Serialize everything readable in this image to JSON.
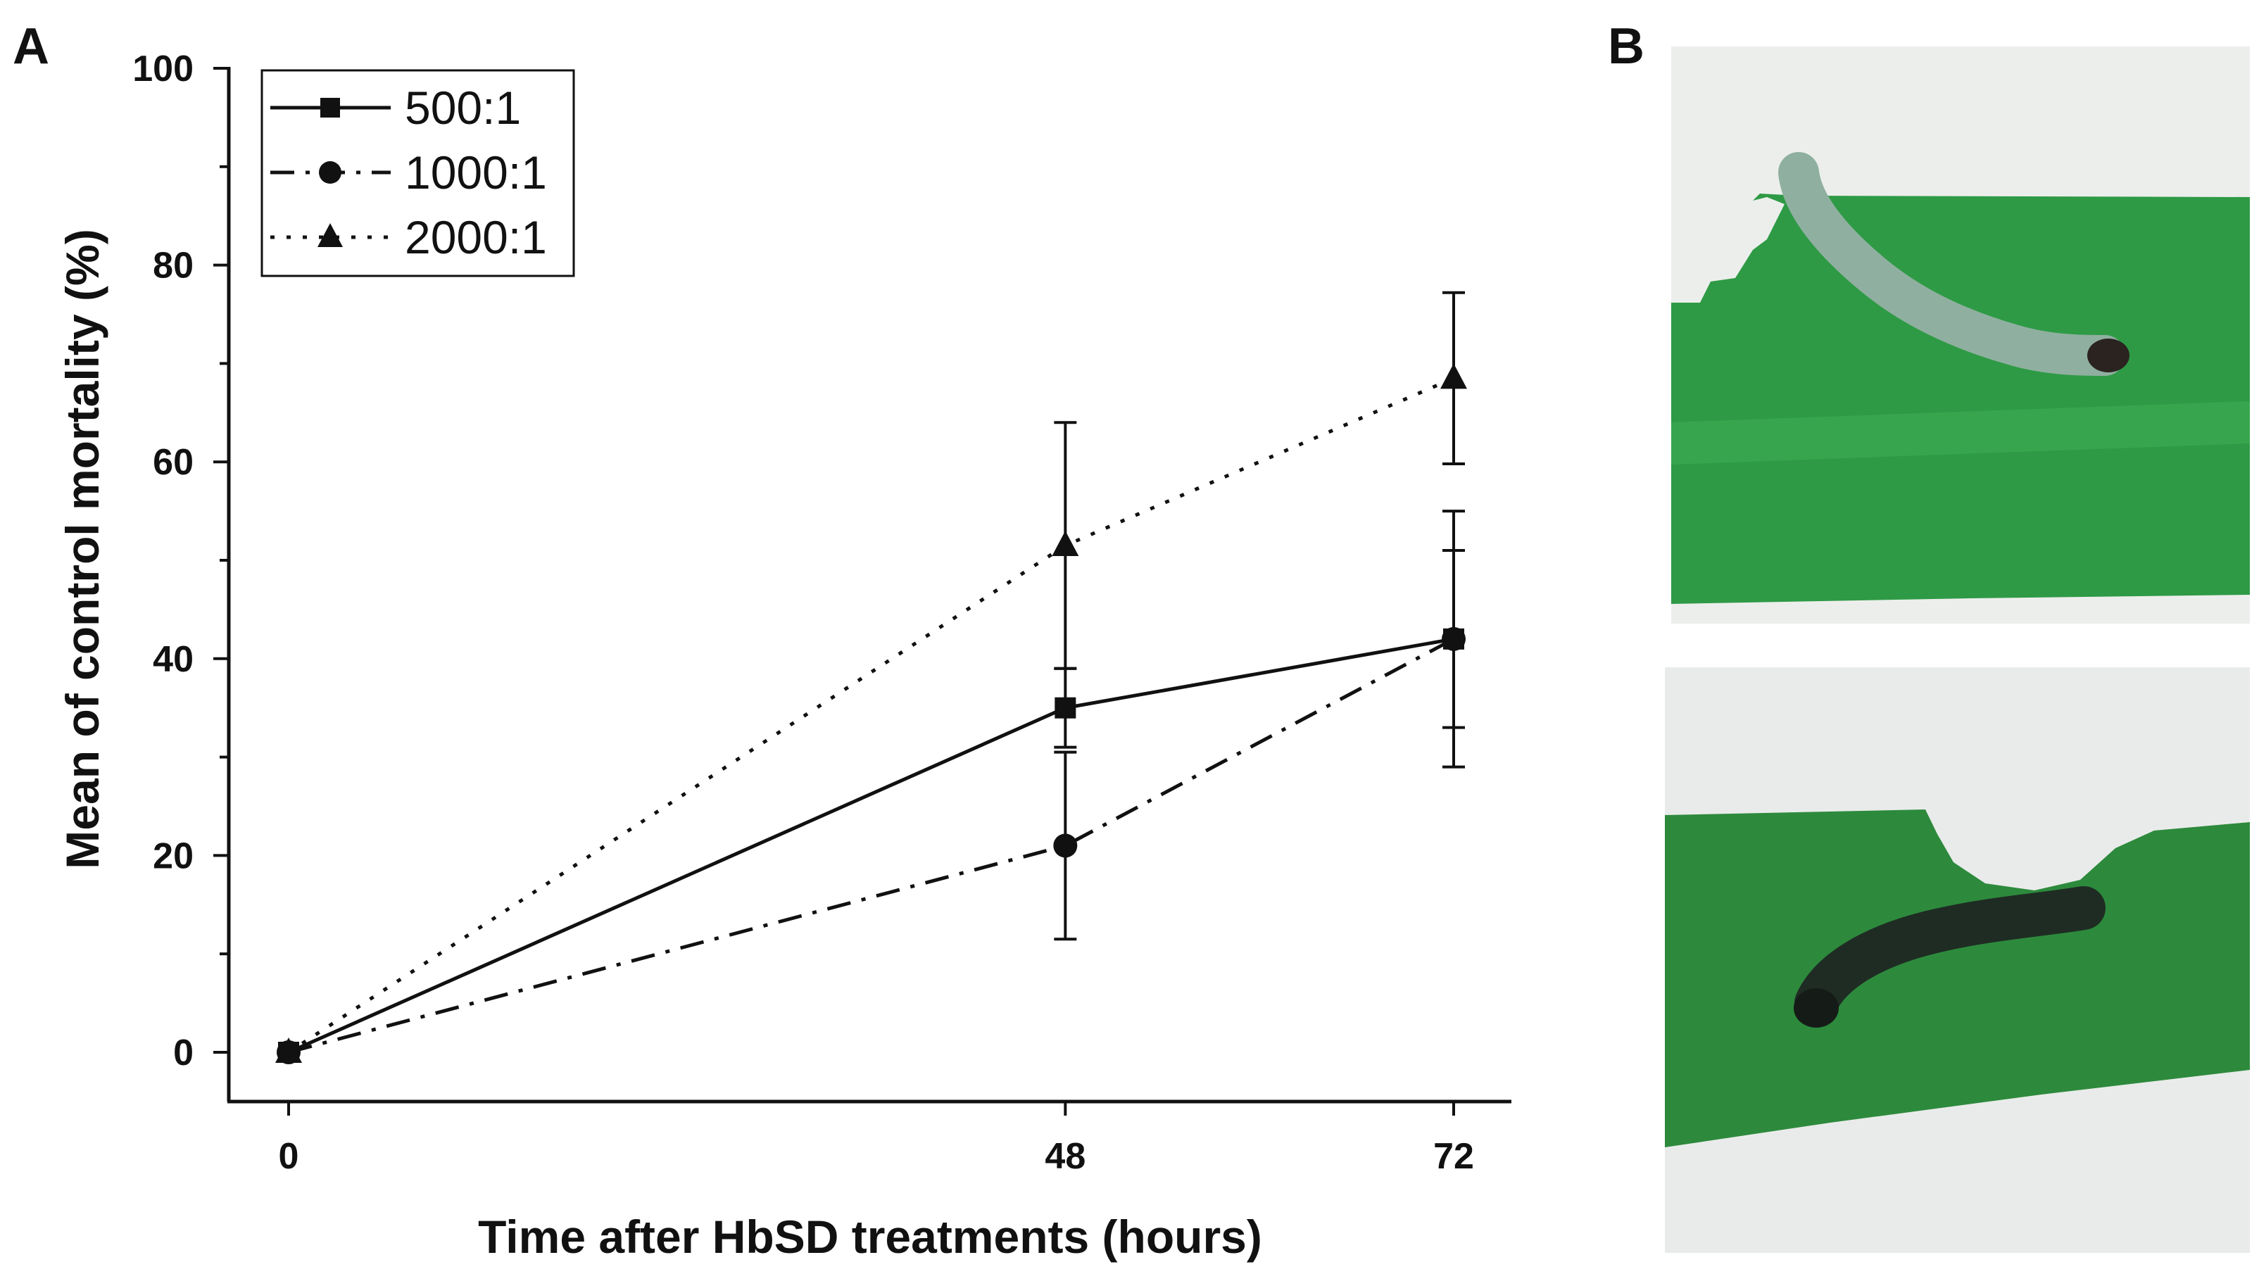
{
  "panels": {
    "a_label": "A",
    "b_label": "B"
  },
  "chart_data": {
    "type": "line",
    "title": "",
    "xlabel": "Time after HbSD treatments (hours)",
    "ylabel": "Mean of control mortality (%)",
    "x": [
      0,
      48,
      72
    ],
    "x_tick_labels": [
      "0",
      "48",
      "72"
    ],
    "y_tick_labels": [
      "0",
      "20",
      "40",
      "60",
      "80",
      "100"
    ],
    "ylim": [
      -10,
      100
    ],
    "yticks": [
      0,
      20,
      40,
      60,
      80,
      100
    ],
    "grid": false,
    "legend_position": "top-left",
    "series": [
      {
        "name": "500:1",
        "line_style": "solid",
        "marker": "square",
        "values": [
          0,
          35,
          42
        ],
        "error": [
          0,
          4,
          9
        ]
      },
      {
        "name": "1000:1",
        "line_style": "dash-dot",
        "marker": "circle",
        "values": [
          0,
          21,
          42
        ],
        "error": [
          0,
          9.5,
          13
        ]
      },
      {
        "name": "2000:1",
        "line_style": "dotted",
        "marker": "triangle",
        "values": [
          0,
          51.5,
          68.5
        ],
        "error": [
          0,
          12.5,
          8.7
        ]
      }
    ]
  },
  "photos": {
    "top_leaf_color": "#2e9a45",
    "bottom_leaf_color": "#2d8a3c",
    "top_larva_color": "#8fb0a0",
    "bottom_larva_color": "#1f2c24"
  }
}
